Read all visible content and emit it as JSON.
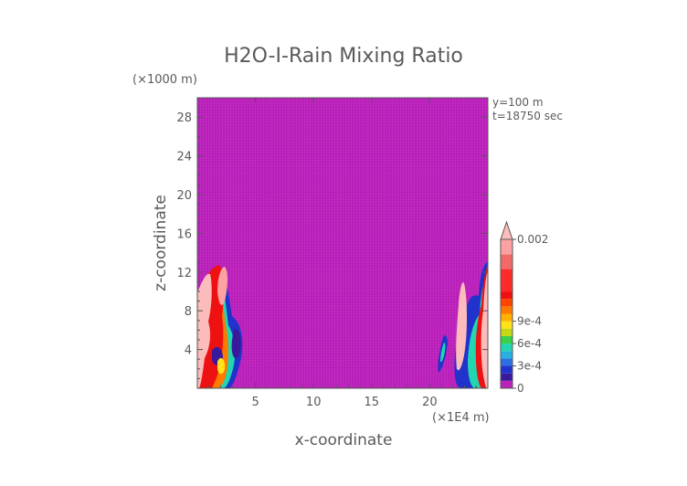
{
  "chart_data": {
    "type": "heatmap",
    "title": "H2O-I-Rain Mixing Ratio",
    "xlabel": "x-coordinate",
    "ylabel": "z-coordinate",
    "x_multiplier": "(×1E4 m)",
    "y_multiplier": "(×1000 m)",
    "annotations": [
      "y=100 m",
      "t=18750 sec"
    ],
    "xlim": [
      0,
      25
    ],
    "ylim": [
      0,
      30
    ],
    "x_ticks": [
      5,
      10,
      15,
      20
    ],
    "y_ticks": [
      4,
      8,
      12,
      16,
      20,
      24,
      28
    ],
    "background_value": 0,
    "background_color": "#bb22bb",
    "colorbar": {
      "labels": [
        {
          "value": 0,
          "text": "0"
        },
        {
          "value": 0.0003,
          "text": "3e-4"
        },
        {
          "value": 0.0006,
          "text": "6e-4"
        },
        {
          "value": 0.0009,
          "text": "9e-4"
        },
        {
          "value": 0.002,
          "text": "0.002"
        }
      ],
      "extend": "max",
      "colors": [
        "#bb22bb",
        "#3a1a9a",
        "#2233cc",
        "#2d6fe0",
        "#28b0e0",
        "#22d6b0",
        "#3ad04a",
        "#c4d818",
        "#ffe21a",
        "#ffb000",
        "#ff7a00",
        "#ff4400",
        "#ee1111",
        "#ff2a2a",
        "#f06a6a",
        "#fca2a2",
        "#fcbcbc"
      ],
      "segment_values": [
        0,
        0.0001,
        0.0002,
        0.0003,
        0.0004,
        0.0005,
        0.0006,
        0.0007,
        0.0008,
        0.0009,
        0.001,
        0.0011,
        0.0012,
        0.0013,
        0.0016,
        0.0018,
        0.002
      ]
    },
    "features": [
      {
        "name": "left-cell",
        "x_range": [
          0,
          3.9
        ],
        "z_range": [
          0,
          13
        ]
      },
      {
        "name": "right-cell",
        "x_range": [
          20.5,
          25
        ],
        "z_range": [
          0,
          13
        ]
      }
    ]
  }
}
